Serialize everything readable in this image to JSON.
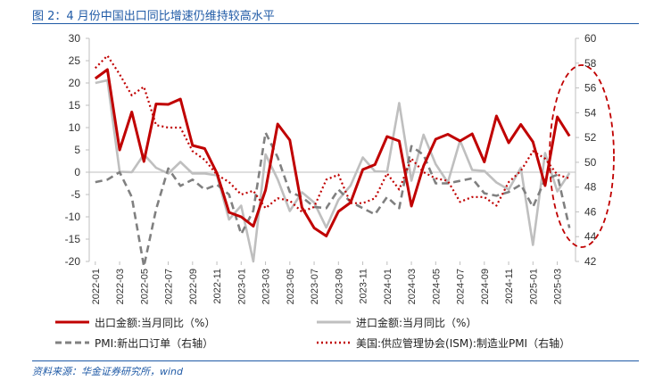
{
  "header": {
    "title": "图 2：4 月份中国出口同比增速仍维持较高水平"
  },
  "footer": {
    "source": "资料来源：华金证券研究所，wind"
  },
  "chart_data": {
    "type": "line",
    "x_tick_labels": [
      "2022-01",
      "2022-03",
      "2022-05",
      "2022-07",
      "2022-09",
      "2022-11",
      "2023-01",
      "2023-03",
      "2023-05",
      "2023-07",
      "2023-09",
      "2023-11",
      "2024-01",
      "2024-03",
      "2024-05",
      "2024-07",
      "2024-09",
      "2024-11",
      "2025-01",
      "2025-03"
    ],
    "y_left": {
      "min": -20,
      "max": 30,
      "ticks": [
        "-20",
        "-15",
        "-10",
        "-5",
        "0",
        "5",
        "10",
        "15",
        "20",
        "25",
        "30"
      ]
    },
    "y_right": {
      "min": 42,
      "max": 60,
      "ticks": [
        "42",
        "44",
        "46",
        "48",
        "50",
        "52",
        "54",
        "56",
        "58",
        "60"
      ]
    },
    "series": [
      {
        "name": "出口金额:当月同比（%）",
        "axis": "left",
        "color": "#c00000",
        "dash": "solid",
        "x": [
          0,
          1,
          2,
          3,
          4,
          5,
          6,
          7,
          8,
          9,
          10,
          11,
          12,
          13,
          14,
          15,
          16,
          17,
          18,
          19,
          20,
          21,
          22,
          23,
          24,
          25,
          26,
          27,
          28,
          29,
          30,
          31,
          32,
          33,
          34,
          35,
          36,
          37,
          38,
          39
        ],
        "values": [
          21,
          23,
          5,
          13.5,
          2.4,
          15.3,
          15.2,
          16.4,
          6,
          5.3,
          -0.2,
          -9,
          -10,
          -12.1,
          -4,
          10.8,
          7.2,
          -7.9,
          -12.5,
          -14.3,
          -8.8,
          -6.8,
          0.6,
          1.7,
          8,
          7,
          -7.6,
          1.4,
          7.4,
          8.5,
          7,
          8.6,
          2.3,
          12.6,
          6.6,
          10.7,
          6.8,
          -3,
          12.4,
          8.1
        ]
      },
      {
        "name": "进口金额:当月同比（%）",
        "axis": "left",
        "color": "#bfbfbf",
        "dash": "solid",
        "x": [
          0,
          1,
          2,
          3,
          4,
          5,
          6,
          7,
          8,
          9,
          10,
          11,
          12,
          13,
          14,
          15,
          16,
          17,
          18,
          19,
          20,
          21,
          22,
          23,
          24,
          25,
          26,
          27,
          28,
          29,
          30,
          31,
          32,
          33,
          34,
          35,
          36,
          37,
          38,
          39
        ],
        "values": [
          20,
          20.6,
          0.1,
          0,
          4,
          1,
          -0.3,
          2.3,
          -0.3,
          -0.3,
          -0.7,
          -10.6,
          -7.5,
          -20,
          4,
          -1.6,
          -8.7,
          -4.5,
          -6.8,
          -12.4,
          -6.2,
          -3,
          3.3,
          0.2,
          0.1,
          15.5,
          -1.9,
          8.4,
          1.8,
          -2.3,
          7.1,
          0.5,
          0.3,
          -2.3,
          -3.9,
          1,
          -16.3,
          4.3,
          -4.3,
          -0.2
        ]
      },
      {
        "name": "PMI:新出口订单（右轴）",
        "axis": "right",
        "color": "#808080",
        "dash": "dashed",
        "x": [
          0,
          1,
          2,
          3,
          4,
          5,
          6,
          7,
          8,
          9,
          10,
          11,
          12,
          13,
          14,
          15,
          16,
          17,
          18,
          19,
          20,
          21,
          22,
          23,
          24,
          25,
          26,
          27,
          28,
          29,
          30,
          31,
          32,
          33,
          34,
          35,
          36,
          37,
          38,
          39
        ],
        "values": [
          48.4,
          48.6,
          49.2,
          47.2,
          41.6,
          46.2,
          49.5,
          48.1,
          48.6,
          47.8,
          48.2,
          47.4,
          44.2,
          46.1,
          52.4,
          50.4,
          47.6,
          47.2,
          46.4,
          46.3,
          47.8,
          46.8,
          46.3,
          45.8,
          47.2,
          46.3,
          51.3,
          50.6,
          48.3,
          48.3,
          48.5,
          48.7,
          47.5,
          47.3,
          47.6,
          48.2,
          46.4,
          48.6,
          49,
          44.7
        ]
      },
      {
        "name": "美国:供应管理协会(ISM):制造业PMI（右轴）",
        "axis": "right",
        "color": "#c00000",
        "dash": "dotted",
        "x": [
          0,
          1,
          2,
          3,
          4,
          5,
          6,
          7,
          8,
          9,
          10,
          11,
          12,
          13,
          14,
          15,
          16,
          17,
          18,
          19,
          20,
          21,
          22,
          23,
          24,
          25,
          26,
          27,
          28,
          29,
          30,
          31,
          32,
          33,
          34,
          35,
          36,
          37,
          38,
          39
        ],
        "values": [
          57.6,
          58.6,
          57.1,
          55.4,
          56.1,
          53,
          52.8,
          52.8,
          50.9,
          50.2,
          49,
          48.4,
          47.4,
          47.7,
          46.3,
          47.1,
          46.9,
          46,
          46.4,
          48.6,
          49,
          46.7,
          46.7,
          47.1,
          49.1,
          47.8,
          50.3,
          49.2,
          48.7,
          48.5,
          46.8,
          47.2,
          47.2,
          46.5,
          48.4,
          49.3,
          50.9,
          50.3,
          49,
          48.7
        ]
      }
    ]
  },
  "legend": {
    "items": [
      "出口金额:当月同比（%）",
      "进口金额:当月同比（%）",
      "PMI:新出口订单（右轴）",
      "美国:供应管理协会(ISM):制造业PMI（右轴）"
    ]
  }
}
